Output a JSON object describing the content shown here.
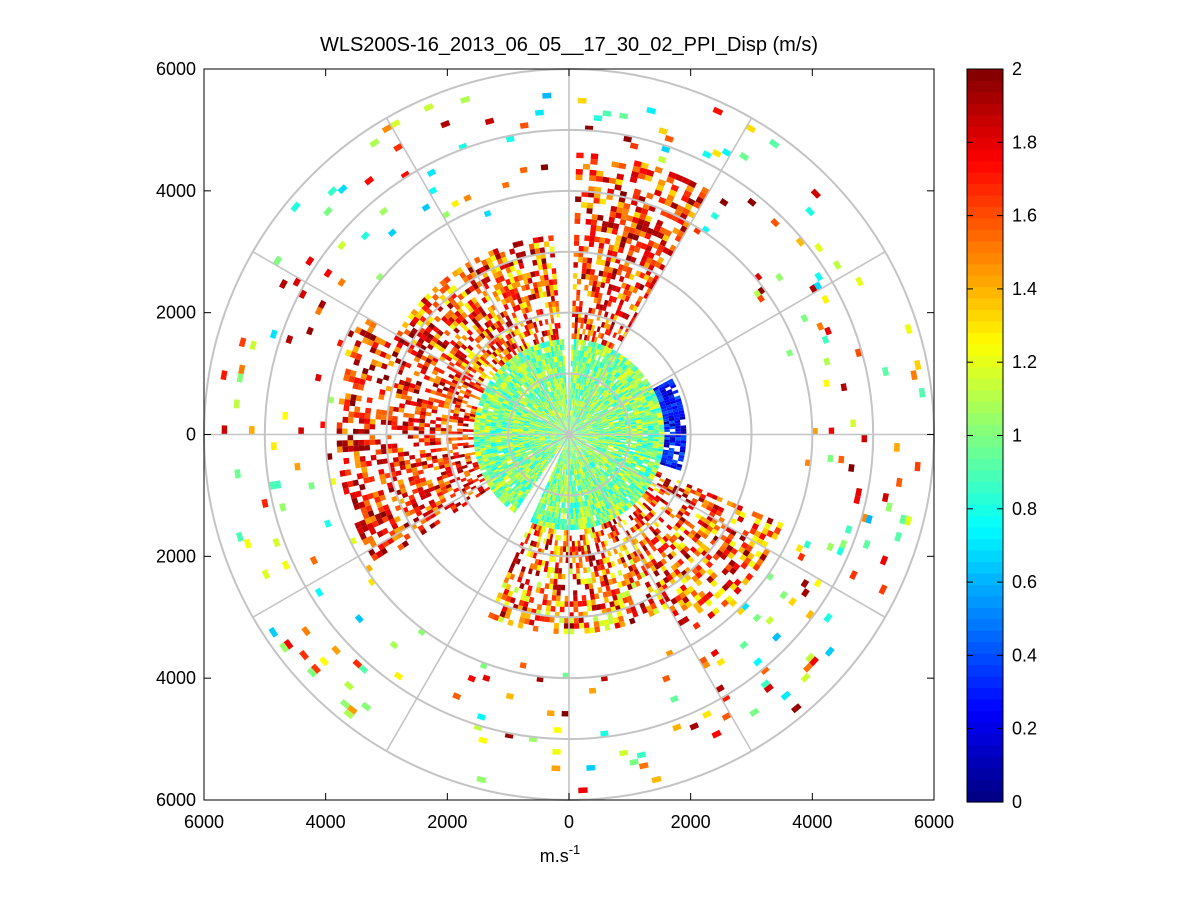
{
  "chart_data": {
    "type": "heatmap",
    "subtype": "polar-ppi",
    "title": "WLS200S-16_2013_06_05__17_30_02_PPI_Disp (m/s)",
    "xlabel": "m.s",
    "xlabel_superscript": "-1",
    "ylabel": "",
    "xlim": [
      -6000,
      6000
    ],
    "ylim": [
      -6000,
      6000
    ],
    "x_tick_values": [
      -6000,
      -4000,
      -2000,
      0,
      2000,
      4000,
      6000
    ],
    "x_tick_labels": [
      "6000",
      "4000",
      "2000",
      "0",
      "2000",
      "4000",
      "6000"
    ],
    "y_tick_values": [
      6000,
      4000,
      2000,
      0,
      -2000,
      -4000,
      -6000
    ],
    "y_tick_labels": [
      "6000",
      "4000",
      "2000",
      "0",
      "2000",
      "4000",
      "6000"
    ],
    "range_rings": [
      1000,
      2000,
      3000,
      4000,
      5000,
      6000
    ],
    "spokes_deg": [
      0,
      30,
      60,
      90,
      120,
      150,
      180,
      210,
      240,
      270,
      300,
      330
    ],
    "colorbar": {
      "min": 0,
      "max": 2,
      "colormap": "jet",
      "tick_values": [
        0,
        0.2,
        0.4,
        0.6,
        0.8,
        1,
        1.2,
        1.4,
        1.6,
        1.8,
        2
      ],
      "tick_labels": [
        "0",
        "0.2",
        "0.4",
        "0.6",
        "0.8",
        "1",
        "1.2",
        "1.4",
        "1.6",
        "1.8",
        "2"
      ]
    },
    "data_regions": [
      {
        "name": "core",
        "angle_from_deg": 0,
        "angle_to_deg": 360,
        "r_min": 0,
        "r_max": 1600,
        "value_min": 0.75,
        "value_max": 1.25,
        "density": 0.97
      },
      {
        "name": "northeast-blue",
        "angle_from_deg": 62,
        "angle_to_deg": 108,
        "r_min": 300,
        "r_max": 1900,
        "value_min": 0.05,
        "value_max": 0.45,
        "density": 0.85
      },
      {
        "name": "north-sector",
        "angle_from_deg": 2,
        "angle_to_deg": 30,
        "r_min": 1300,
        "r_max": 4600,
        "value_min": 1.3,
        "value_max": 2.0,
        "density": 0.55
      },
      {
        "name": "northwest-sector",
        "angle_from_deg": 300,
        "angle_to_deg": 356,
        "r_min": 1500,
        "r_max": 3300,
        "value_min": 1.2,
        "value_max": 2.0,
        "density": 0.6
      },
      {
        "name": "west-sector",
        "angle_from_deg": 235,
        "angle_to_deg": 300,
        "r_min": 1500,
        "r_max": 3800,
        "value_min": 1.4,
        "value_max": 2.0,
        "density": 0.55
      },
      {
        "name": "southeast-sector",
        "angle_from_deg": 112,
        "angle_to_deg": 150,
        "r_min": 1600,
        "r_max": 3800,
        "value_min": 1.2,
        "value_max": 2.0,
        "density": 0.5
      },
      {
        "name": "south-sector",
        "angle_from_deg": 150,
        "angle_to_deg": 205,
        "r_min": 1400,
        "r_max": 3300,
        "value_min": 1.1,
        "value_max": 2.0,
        "density": 0.55
      },
      {
        "name": "far-scatter",
        "angle_from_deg": 0,
        "angle_to_deg": 360,
        "r_min": 3800,
        "r_max": 5900,
        "value_min": 0.6,
        "value_max": 2.0,
        "density": 0.05
      }
    ],
    "empty_wedges_deg": [
      [
        357,
        361
      ],
      [
        204,
        214
      ]
    ]
  }
}
